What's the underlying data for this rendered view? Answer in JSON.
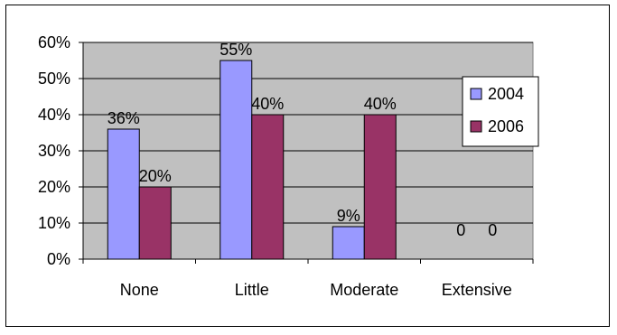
{
  "chart_data": {
    "type": "bar",
    "categories": [
      "None",
      "Little",
      "Moderate",
      "Extensive"
    ],
    "series": [
      {
        "name": "2004",
        "values": [
          36,
          55,
          9,
          0
        ],
        "labels": [
          "36%",
          "55%",
          "9%",
          "0"
        ],
        "color": "#9999ff"
      },
      {
        "name": "2006",
        "values": [
          20,
          40,
          40,
          0
        ],
        "labels": [
          "20%",
          "40%",
          "40%",
          "0"
        ],
        "color": "#993366"
      }
    ],
    "ylim": [
      0,
      60
    ],
    "yticks": [
      "0%",
      "10%",
      "20%",
      "30%",
      "40%",
      "50%",
      "60%"
    ],
    "plot_background": "#c0c0c0",
    "grid": true,
    "legend": "right"
  }
}
